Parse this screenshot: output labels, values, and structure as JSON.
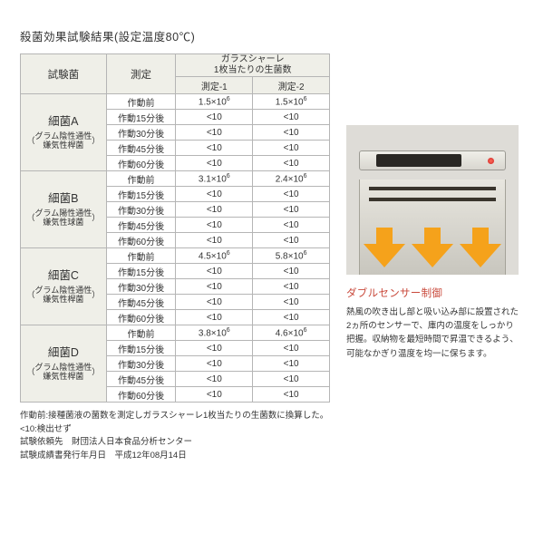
{
  "title": "殺菌効果試験結果(設定温度80℃)",
  "table": {
    "headers": {
      "col1": "試験菌",
      "col2": "測定",
      "col3_top": "ガラスシャーレ\n1枚当たりの生菌数",
      "sub1": "測定-1",
      "sub2": "測定-2"
    },
    "groups": [
      {
        "name": "細菌A",
        "desc1": "グラム陰性通性",
        "desc2": "嫌気性桿菌",
        "rows": [
          {
            "m": "作動前",
            "v1": "1.5×10⁶",
            "v2": "1.5×10⁶"
          },
          {
            "m": "作動15分後",
            "v1": "<10",
            "v2": "<10"
          },
          {
            "m": "作動30分後",
            "v1": "<10",
            "v2": "<10"
          },
          {
            "m": "作動45分後",
            "v1": "<10",
            "v2": "<10"
          },
          {
            "m": "作動60分後",
            "v1": "<10",
            "v2": "<10"
          }
        ]
      },
      {
        "name": "細菌B",
        "desc1": "グラム陽性通性",
        "desc2": "嫌気性球菌",
        "rows": [
          {
            "m": "作動前",
            "v1": "3.1×10⁶",
            "v2": "2.4×10⁶"
          },
          {
            "m": "作動15分後",
            "v1": "<10",
            "v2": "<10"
          },
          {
            "m": "作動30分後",
            "v1": "<10",
            "v2": "<10"
          },
          {
            "m": "作動45分後",
            "v1": "<10",
            "v2": "<10"
          },
          {
            "m": "作動60分後",
            "v1": "<10",
            "v2": "<10"
          }
        ]
      },
      {
        "name": "細菌C",
        "desc1": "グラム陰性通性",
        "desc2": "嫌気性桿菌",
        "rows": [
          {
            "m": "作動前",
            "v1": "4.5×10⁶",
            "v2": "5.8×10⁶"
          },
          {
            "m": "作動15分後",
            "v1": "<10",
            "v2": "<10"
          },
          {
            "m": "作動30分後",
            "v1": "<10",
            "v2": "<10"
          },
          {
            "m": "作動45分後",
            "v1": "<10",
            "v2": "<10"
          },
          {
            "m": "作動60分後",
            "v1": "<10",
            "v2": "<10"
          }
        ]
      },
      {
        "name": "細菌D",
        "desc1": "グラム陰性通性",
        "desc2": "嫌気性桿菌",
        "rows": [
          {
            "m": "作動前",
            "v1": "3.8×10⁶",
            "v2": "4.6×10⁶"
          },
          {
            "m": "作動15分後",
            "v1": "<10",
            "v2": "<10"
          },
          {
            "m": "作動30分後",
            "v1": "<10",
            "v2": "<10"
          },
          {
            "m": "作動45分後",
            "v1": "<10",
            "v2": "<10"
          },
          {
            "m": "作動60分後",
            "v1": "<10",
            "v2": "<10"
          }
        ]
      }
    ]
  },
  "footnotes": [
    "作動前:接種菌液の菌数を測定しガラスシャーレ1枚当たりの生菌数に換算した。",
    "<10:検出せず",
    "試験依頼先　財団法人日本食品分析センター",
    "試験成績書発行年月日　平成12年08月14日"
  ],
  "right": {
    "caption": "ダブルセンサー制御",
    "desc": "熱風の吹き出し部と吸い込み部に設置された2ヵ所のセンサーで、庫内の温度をしっかり把握。収納物を最短時間で昇温できるよう、可能なかぎり温度を均一に保ちます。",
    "arrow_color": "#f5a21b",
    "bg_color": "#dedcd7"
  },
  "colors": {
    "border": "#b5b5b5",
    "header_bg": "#efefe8",
    "caption_red": "#c94a3c"
  }
}
